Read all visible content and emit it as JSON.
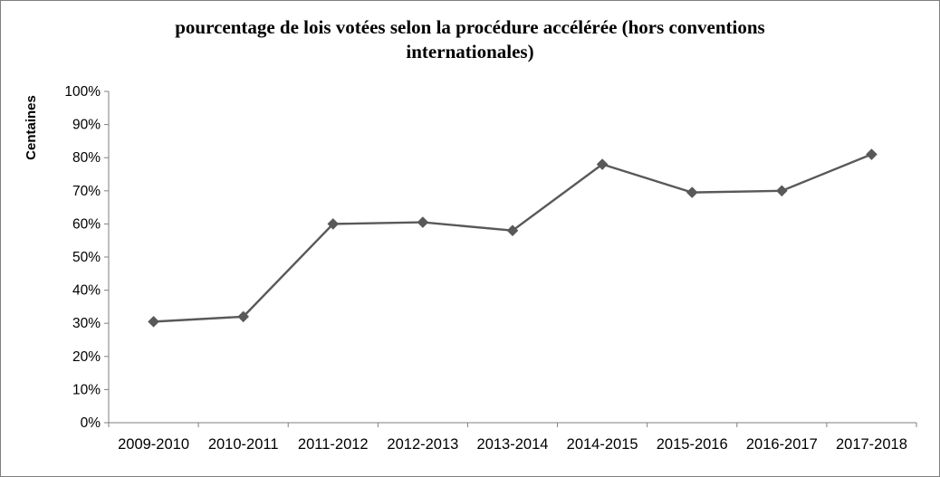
{
  "chart_data": {
    "type": "line",
    "title": "pourcentage de lois votées selon la procédure accélérée (hors conventions internationales)",
    "xlabel": "",
    "ylabel": "Centaines",
    "categories": [
      "2009-2010",
      "2010-2011",
      "2011-2012",
      "2012-2013",
      "2013-2014",
      "2014-2015",
      "2015-2016",
      "2016-2017",
      "2017-2018"
    ],
    "values": [
      30.5,
      32,
      60,
      60.5,
      58,
      78,
      69.5,
      70,
      81
    ],
    "ylim": [
      0,
      100
    ],
    "y_tick_step": 10,
    "y_ticks": [
      "0%",
      "10%",
      "20%",
      "30%",
      "40%",
      "50%",
      "60%",
      "70%",
      "80%",
      "90%",
      "100%"
    ],
    "grid": false,
    "legend": "none",
    "marker": "diamond",
    "line_color": "#595959",
    "marker_color": "#595959",
    "axis_color": "#7f7f7f",
    "text_color": "#000000"
  }
}
